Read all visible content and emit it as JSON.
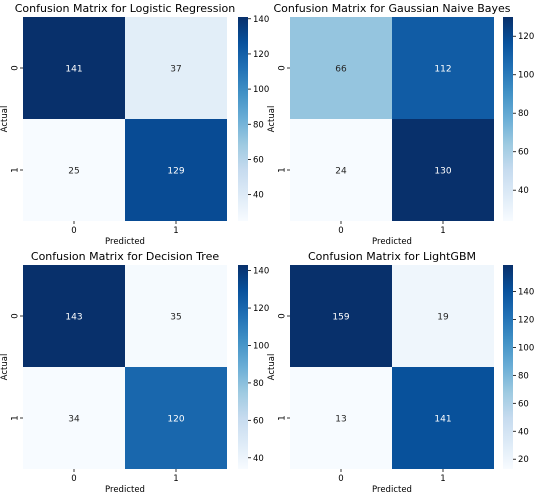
{
  "chart_data": [
    {
      "type": "heatmap",
      "title": "Confusion Matrix for Logistic Regression",
      "xlabel": "Predicted",
      "ylabel": "Actual",
      "x_categories": [
        "0",
        "1"
      ],
      "y_categories": [
        "0",
        "1"
      ],
      "matrix": [
        [
          141,
          37
        ],
        [
          25,
          129
        ]
      ],
      "colormap": "Blues",
      "colorbar": {
        "range": [
          25,
          141
        ],
        "ticks": [
          40,
          60,
          80,
          100,
          120,
          140
        ]
      }
    },
    {
      "type": "heatmap",
      "title": "Confusion Matrix for Gaussian Naive Bayes",
      "xlabel": "Predicted",
      "ylabel": "Actual",
      "x_categories": [
        "0",
        "1"
      ],
      "y_categories": [
        "0",
        "1"
      ],
      "matrix": [
        [
          66,
          112
        ],
        [
          24,
          130
        ]
      ],
      "colormap": "Blues",
      "colorbar": {
        "range": [
          24,
          130
        ],
        "ticks": [
          40,
          60,
          80,
          100,
          120
        ]
      }
    },
    {
      "type": "heatmap",
      "title": "Confusion Matrix for Decision Tree",
      "xlabel": "Predicted",
      "ylabel": "Actual",
      "x_categories": [
        "0",
        "1"
      ],
      "y_categories": [
        "0",
        "1"
      ],
      "matrix": [
        [
          143,
          35
        ],
        [
          34,
          120
        ]
      ],
      "colormap": "Blues",
      "colorbar": {
        "range": [
          34,
          143
        ],
        "ticks": [
          40,
          60,
          80,
          100,
          120,
          140
        ]
      }
    },
    {
      "type": "heatmap",
      "title": "Confusion Matrix for LightGBM",
      "xlabel": "Predicted",
      "ylabel": "Actual",
      "x_categories": [
        "0",
        "1"
      ],
      "y_categories": [
        "0",
        "1"
      ],
      "matrix": [
        [
          159,
          19
        ],
        [
          13,
          141
        ]
      ],
      "colormap": "Blues",
      "colorbar": {
        "range": [
          13,
          159
        ],
        "ticks": [
          20,
          40,
          60,
          80,
          100,
          120,
          140
        ]
      }
    }
  ]
}
